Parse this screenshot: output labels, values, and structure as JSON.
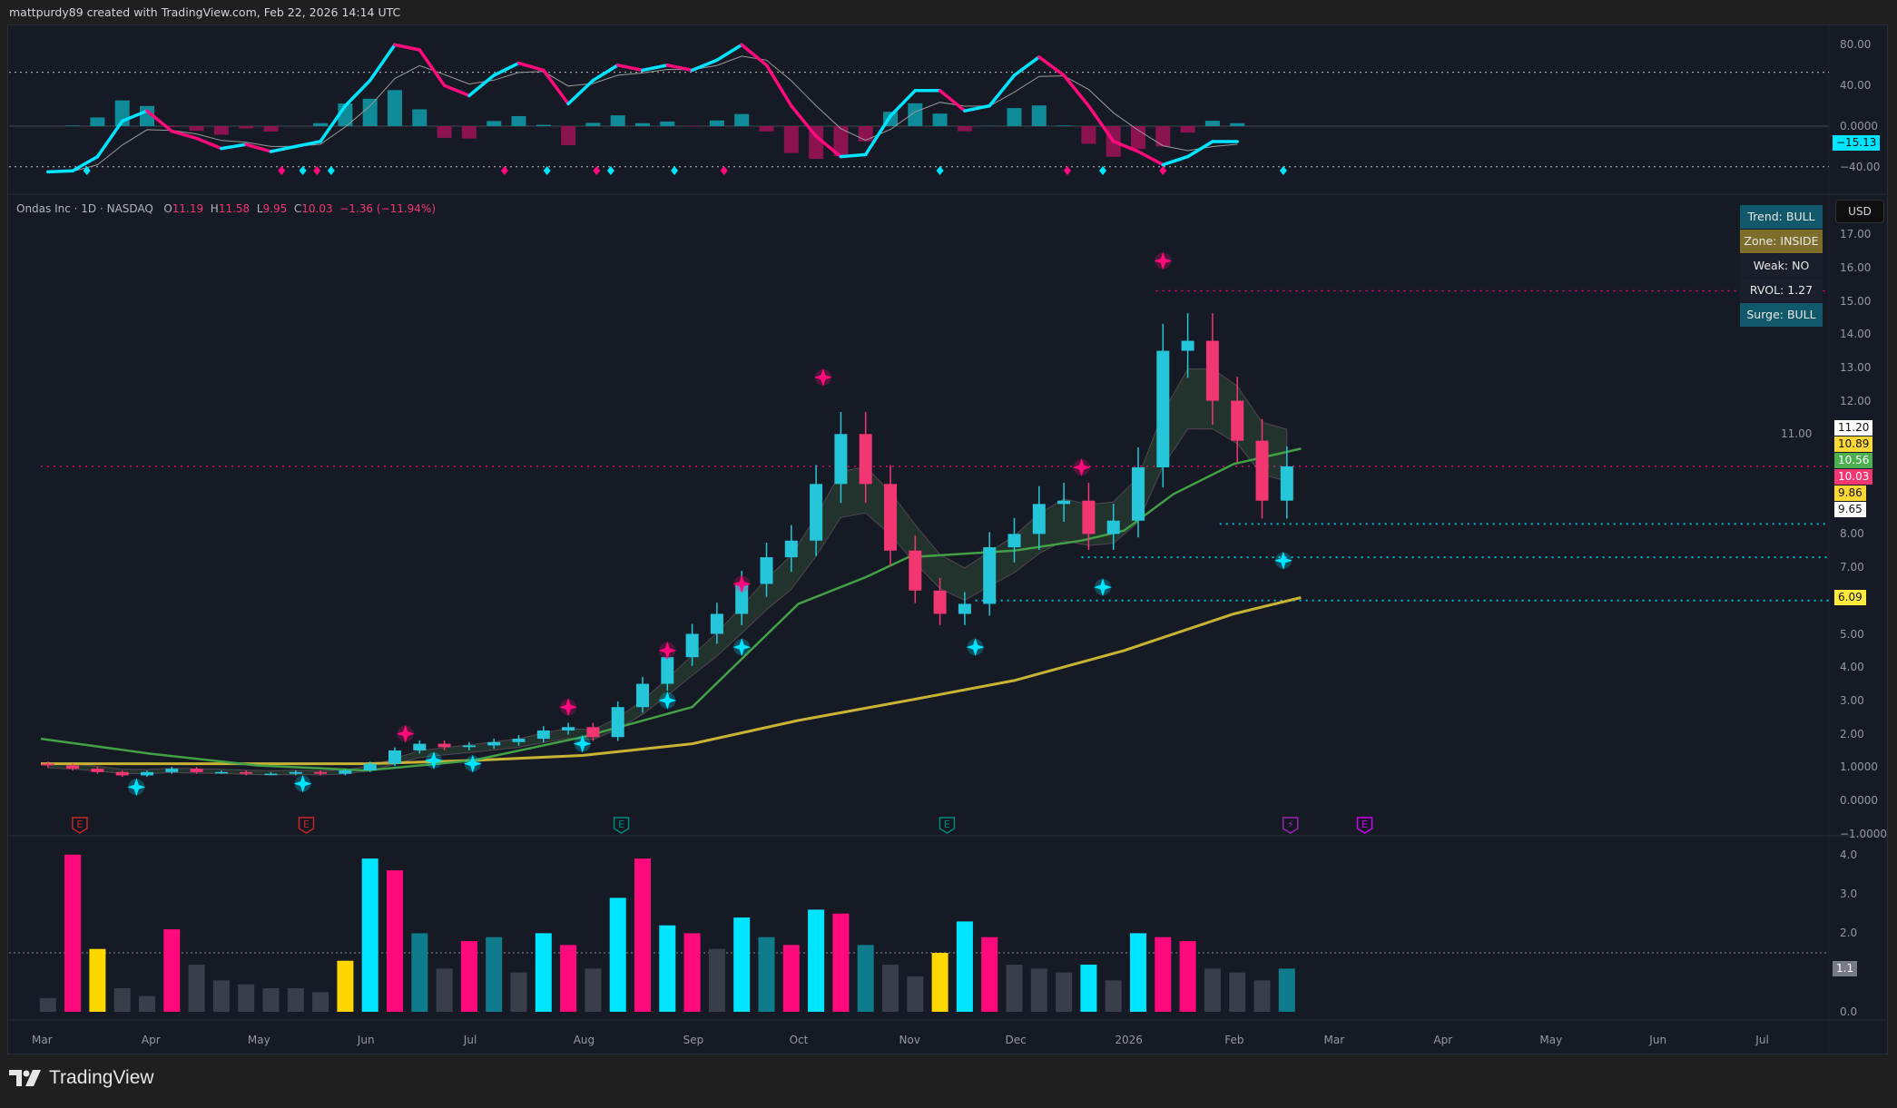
{
  "header": {
    "credit": "mattpurdy89 created with TradingView.com, Feb 22, 2026 14:14 UTC"
  },
  "legend": {
    "symbol": "Ondas Inc · 1D · NASDAQ",
    "o_label": "O",
    "o": "11.19",
    "h_label": "H",
    "h": "11.58",
    "l_label": "L",
    "l": "9.95",
    "c_label": "C",
    "c": "10.03",
    "change": "−1.36 (−11.94%)"
  },
  "status": [
    {
      "text": "Trend: BULL",
      "color": "#11596a"
    },
    {
      "text": "Zone: INSIDE",
      "color": "#7d6e2b"
    },
    {
      "text": "Weak: NO",
      "color": "#1b1e2b"
    },
    {
      "text": "RVOL: 1.27",
      "color": "#1b1e2b"
    },
    {
      "text": "Surge: BULL",
      "color": "#11596a"
    }
  ],
  "currency": "USD",
  "osc_axis": {
    "ticks": [
      "80.00",
      "40.00",
      "0.0000",
      "−40.00"
    ],
    "values": [
      80,
      40,
      0,
      -40
    ],
    "current": "−15.13",
    "current_value": -15.13,
    "current_color": "#00e5ff",
    "levels": [
      53,
      -40
    ]
  },
  "price_axis": {
    "ticks": [
      "17.00",
      "16.00",
      "15.00",
      "14.00",
      "13.00",
      "12.00",
      "11.00",
      "8.00",
      "7.00",
      "5.00",
      "4.00",
      "3.00",
      "2.00",
      "1.0000",
      "0.0000",
      "−1.0000"
    ],
    "values": [
      17,
      16,
      15,
      14,
      13,
      12,
      11,
      8,
      7,
      5,
      4,
      3,
      2,
      1,
      0,
      -1
    ],
    "tags": [
      {
        "text": "11.20",
        "value": 11.2,
        "bg": "#ffffff",
        "fg": "#111111"
      },
      {
        "text": "10.89",
        "value": 10.89,
        "bg": "#fdd835",
        "fg": "#111111"
      },
      {
        "text": "10.56",
        "value": 10.56,
        "bg": "#4caf50",
        "fg": "#ffffff"
      },
      {
        "text": "10.03",
        "value": 10.03,
        "bg": "#f23672",
        "fg": "#ffffff"
      },
      {
        "text": "9.86",
        "value": 9.86,
        "bg": "#fdd835",
        "fg": "#111111"
      },
      {
        "text": "9.65",
        "value": 9.65,
        "bg": "#ffffff",
        "fg": "#111111"
      },
      {
        "text": "6.09",
        "value": 6.09,
        "bg": "#ffeb3b",
        "fg": "#111111"
      }
    ]
  },
  "volume_axis": {
    "ticks": [
      "4.0",
      "3.0",
      "2.0",
      "0.0"
    ],
    "values": [
      4,
      3,
      2,
      0
    ],
    "current": "1.1",
    "current_value": 1.1,
    "level": 1.5
  },
  "time_axis": {
    "labels": [
      "Mar",
      "Apr",
      "May",
      "Jun",
      "Jul",
      "Aug",
      "Sep",
      "Oct",
      "Nov",
      "Dec",
      "2026",
      "Feb",
      "Mar",
      "Apr",
      "May",
      "Jun",
      "Jul"
    ],
    "dates": [
      "2025-03-01",
      "2025-04-01",
      "2025-05-01",
      "2025-06-01",
      "2025-07-01",
      "2025-08-01",
      "2025-09-01",
      "2025-10-01",
      "2025-11-01",
      "2025-12-01",
      "2026-01-01",
      "2026-02-01",
      "2026-03-01",
      "2026-04-01",
      "2026-05-01",
      "2026-06-01",
      "2026-07-01"
    ]
  },
  "colors": {
    "bull": "#00e5ff",
    "bear": "#ff0a7c",
    "teal": "#0e7c8c",
    "darkpink": "#8b1450",
    "yellow": "#ffd600",
    "gray": "#3a3d4a",
    "ma_fast": "#43a047",
    "ma_slow": "#c9b334",
    "background": "#161a25"
  },
  "chart_data": {
    "type": "candlestick",
    "interval": "1D (shown weekly approx.)",
    "dates": [
      "2025-03-03",
      "2025-03-10",
      "2025-03-17",
      "2025-03-24",
      "2025-03-31",
      "2025-04-07",
      "2025-04-14",
      "2025-04-21",
      "2025-04-28",
      "2025-05-05",
      "2025-05-12",
      "2025-05-19",
      "2025-05-26",
      "2025-06-02",
      "2025-06-09",
      "2025-06-16",
      "2025-06-23",
      "2025-06-30",
      "2025-07-07",
      "2025-07-14",
      "2025-07-21",
      "2025-07-28",
      "2025-08-04",
      "2025-08-11",
      "2025-08-18",
      "2025-08-25",
      "2025-09-01",
      "2025-09-08",
      "2025-09-15",
      "2025-09-22",
      "2025-09-29",
      "2025-10-06",
      "2025-10-13",
      "2025-10-20",
      "2025-10-27",
      "2025-11-03",
      "2025-11-10",
      "2025-11-17",
      "2025-11-24",
      "2025-12-01",
      "2025-12-08",
      "2025-12-15",
      "2025-12-22",
      "2025-12-29",
      "2026-01-05",
      "2026-01-12",
      "2026-01-19",
      "2026-01-26",
      "2026-02-02",
      "2026-02-09",
      "2026-02-16"
    ],
    "close": [
      1.05,
      0.95,
      0.85,
      0.75,
      0.85,
      0.95,
      0.85,
      0.85,
      0.8,
      0.8,
      0.85,
      0.8,
      0.9,
      1.1,
      1.5,
      1.7,
      1.6,
      1.65,
      1.75,
      1.85,
      2.1,
      2.2,
      1.9,
      2.8,
      3.5,
      4.3,
      5.0,
      5.6,
      6.5,
      7.3,
      7.8,
      9.5,
      11.0,
      9.5,
      7.5,
      6.3,
      5.6,
      5.9,
      7.6,
      8.0,
      8.9,
      9.0,
      8.0,
      8.4,
      10.0,
      13.5,
      13.8,
      12.0,
      10.8,
      9.0,
      10.03
    ],
    "oscillator": [
      -45,
      -44,
      -30,
      5,
      15,
      -5,
      -12,
      -22,
      -18,
      -25,
      -20,
      -15,
      20,
      45,
      80,
      75,
      40,
      30,
      50,
      62,
      55,
      22,
      45,
      60,
      55,
      60,
      55,
      65,
      80,
      60,
      20,
      -10,
      -30,
      -28,
      10,
      35,
      35,
      15,
      20,
      50,
      68,
      50,
      20,
      -15,
      -25,
      -38,
      -30,
      -15.13,
      -15.13,
      -15.13,
      -15.13
    ],
    "volume": [
      [
        0.35,
        "gray"
      ],
      [
        4.0,
        "bear"
      ],
      [
        1.6,
        "yellow"
      ],
      [
        0.6,
        "gray"
      ],
      [
        0.4,
        "gray"
      ],
      [
        2.1,
        "bear"
      ],
      [
        1.2,
        "gray"
      ],
      [
        0.8,
        "gray"
      ],
      [
        0.7,
        "gray"
      ],
      [
        0.6,
        "gray"
      ],
      [
        0.6,
        "gray"
      ],
      [
        0.5,
        "gray"
      ],
      [
        1.3,
        "yellow"
      ],
      [
        3.9,
        "bull"
      ],
      [
        3.6,
        "bear"
      ],
      [
        2.0,
        "teal"
      ],
      [
        1.1,
        "gray"
      ],
      [
        1.8,
        "bear"
      ],
      [
        1.9,
        "teal"
      ],
      [
        1.0,
        "gray"
      ],
      [
        2.0,
        "bull"
      ],
      [
        1.7,
        "bear"
      ],
      [
        1.1,
        "gray"
      ],
      [
        2.9,
        "bull"
      ],
      [
        3.9,
        "bear"
      ],
      [
        2.2,
        "bull"
      ],
      [
        2.0,
        "bear"
      ],
      [
        1.6,
        "gray"
      ],
      [
        2.4,
        "bull"
      ],
      [
        1.9,
        "teal"
      ],
      [
        1.7,
        "bear"
      ],
      [
        2.6,
        "bull"
      ],
      [
        2.5,
        "bear"
      ],
      [
        1.7,
        "teal"
      ],
      [
        1.2,
        "gray"
      ],
      [
        0.9,
        "gray"
      ],
      [
        1.5,
        "yellow"
      ],
      [
        2.3,
        "bull"
      ],
      [
        1.9,
        "bear"
      ],
      [
        1.2,
        "gray"
      ],
      [
        1.1,
        "gray"
      ],
      [
        1.0,
        "gray"
      ],
      [
        1.2,
        "bull"
      ],
      [
        0.8,
        "gray"
      ],
      [
        2.0,
        "bull"
      ],
      [
        1.9,
        "bear"
      ],
      [
        1.8,
        "bear"
      ],
      [
        1.1,
        "gray"
      ],
      [
        1.0,
        "gray"
      ],
      [
        0.8,
        "gray"
      ],
      [
        1.1,
        "teal"
      ]
    ],
    "ma_fast": [
      [
        "2025-03-01",
        1.85
      ],
      [
        "2025-04-01",
        1.4
      ],
      [
        "2025-05-01",
        1.05
      ],
      [
        "2025-06-01",
        0.9
      ],
      [
        "2025-07-01",
        1.2
      ],
      [
        "2025-08-01",
        1.9
      ],
      [
        "2025-09-01",
        2.8
      ],
      [
        "2025-10-01",
        5.9
      ],
      [
        "2025-10-20",
        6.7
      ],
      [
        "2025-11-01",
        7.3
      ],
      [
        "2025-12-01",
        7.5
      ],
      [
        "2025-12-20",
        7.8
      ],
      [
        "2026-01-01",
        8.1
      ],
      [
        "2026-01-15",
        9.2
      ],
      [
        "2026-02-01",
        10.1
      ],
      [
        "2026-02-20",
        10.56
      ]
    ],
    "ma_slow": [
      [
        "2025-03-01",
        1.1
      ],
      [
        "2025-06-01",
        1.1
      ],
      [
        "2025-07-01",
        1.2
      ],
      [
        "2025-08-01",
        1.35
      ],
      [
        "2025-09-01",
        1.7
      ],
      [
        "2025-10-01",
        2.4
      ],
      [
        "2025-11-01",
        3.0
      ],
      [
        "2025-12-01",
        3.6
      ],
      [
        "2026-01-01",
        4.5
      ],
      [
        "2026-02-01",
        5.6
      ],
      [
        "2026-02-20",
        6.09
      ]
    ],
    "levels": [
      {
        "value": 15.3,
        "color": "#ff0a7c",
        "from": "2026-01-10"
      },
      {
        "value": 10.03,
        "color": "#ff0a7c",
        "from": "2025-03-01"
      },
      {
        "value": 8.3,
        "color": "#00bcd4",
        "from": "2026-01-28"
      },
      {
        "value": 7.3,
        "color": "#00bcd4",
        "from": "2025-12-20"
      },
      {
        "value": 6.0,
        "color": "#00bcd4",
        "from": "2025-11-20"
      }
    ],
    "price_signals": [
      {
        "date": "2025-10-08",
        "value": 12.7,
        "type": "bear"
      },
      {
        "date": "2026-01-12",
        "value": 16.2,
        "type": "bear"
      },
      {
        "date": "2025-12-20",
        "value": 10.0,
        "type": "bear"
      },
      {
        "date": "2025-09-15",
        "value": 6.5,
        "type": "bear"
      },
      {
        "date": "2025-08-25",
        "value": 4.5,
        "type": "bear"
      },
      {
        "date": "2025-07-28",
        "value": 2.8,
        "type": "bear"
      },
      {
        "date": "2025-06-12",
        "value": 2.0,
        "type": "bear"
      },
      {
        "date": "2025-03-28",
        "value": 0.4,
        "type": "bull"
      },
      {
        "date": "2025-05-14",
        "value": 0.5,
        "type": "bull"
      },
      {
        "date": "2025-06-20",
        "value": 1.2,
        "type": "bull"
      },
      {
        "date": "2025-07-01",
        "value": 1.1,
        "type": "bull"
      },
      {
        "date": "2025-08-01",
        "value": 1.7,
        "type": "bull"
      },
      {
        "date": "2025-08-25",
        "value": 3.0,
        "type": "bull"
      },
      {
        "date": "2025-09-15",
        "value": 4.6,
        "type": "bull"
      },
      {
        "date": "2025-11-20",
        "value": 4.6,
        "type": "bull"
      },
      {
        "date": "2025-12-26",
        "value": 6.4,
        "type": "bull"
      },
      {
        "date": "2026-02-15",
        "value": 7.2,
        "type": "bull"
      }
    ],
    "osc_signals": [
      {
        "date": "2025-03-14",
        "type": "bull"
      },
      {
        "date": "2025-05-08",
        "type": "bear"
      },
      {
        "date": "2025-05-14",
        "type": "bull"
      },
      {
        "date": "2025-05-18",
        "type": "bear"
      },
      {
        "date": "2025-05-22",
        "type": "bull"
      },
      {
        "date": "2025-07-10",
        "type": "bear"
      },
      {
        "date": "2025-07-22",
        "type": "bull"
      },
      {
        "date": "2025-08-05",
        "type": "bear"
      },
      {
        "date": "2025-08-09",
        "type": "bull"
      },
      {
        "date": "2025-08-27",
        "type": "bull"
      },
      {
        "date": "2025-09-10",
        "type": "bear"
      },
      {
        "date": "2025-11-10",
        "type": "bull"
      },
      {
        "date": "2025-12-16",
        "type": "bear"
      },
      {
        "date": "2025-12-26",
        "type": "bull"
      },
      {
        "date": "2026-01-12",
        "type": "bear"
      },
      {
        "date": "2026-02-15",
        "type": "bull"
      }
    ],
    "events": [
      {
        "date": "2025-03-12",
        "label": "E",
        "color": "#c62828"
      },
      {
        "date": "2025-05-15",
        "label": "E",
        "color": "#c62828"
      },
      {
        "date": "2025-08-12",
        "label": "E",
        "color": "#00897b"
      },
      {
        "date": "2025-11-12",
        "label": "E",
        "color": "#00897b"
      },
      {
        "date": "2026-02-17",
        "label": "⚡",
        "color": "#9c27b0"
      },
      {
        "date": "2026-03-10",
        "label": "E",
        "color": "#d500f9"
      }
    ]
  }
}
